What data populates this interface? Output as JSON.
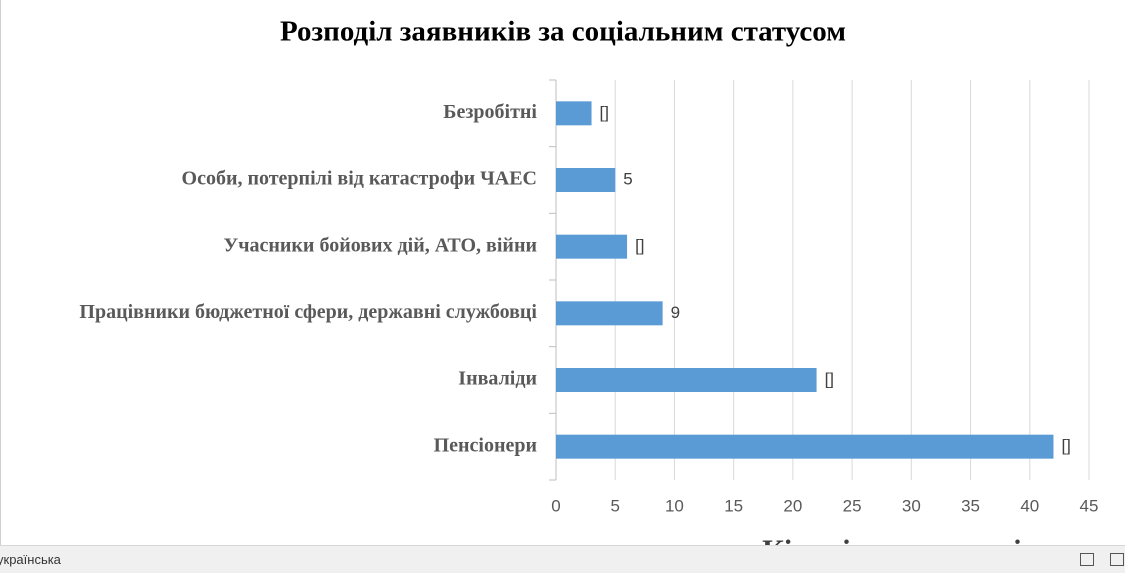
{
  "chart_data": {
    "type": "hbar",
    "title": "Розподіл заявників за соціальним статусом",
    "x_label": "Кількість заявників",
    "categories": [
      "Безробітні",
      "Особи, потерпілі від катастрофи ЧАЕС",
      "Учасники бойових дій, АТО, війни",
      "Працівники бюджетної сфери, державні службовці",
      "Інваліди",
      "Пенсіонери"
    ],
    "values": [
      3,
      5,
      6,
      9,
      22,
      42
    ],
    "value_labels": [
      "[]",
      "5",
      "[]",
      "9",
      "[]",
      "[]"
    ],
    "color": "#5b9bd5",
    "xlim": [
      0,
      45
    ],
    "xticks": [
      0,
      5,
      10,
      15,
      20,
      25,
      30,
      35,
      40,
      45
    ],
    "grid": true
  },
  "status_bar": {
    "language": "українська"
  }
}
